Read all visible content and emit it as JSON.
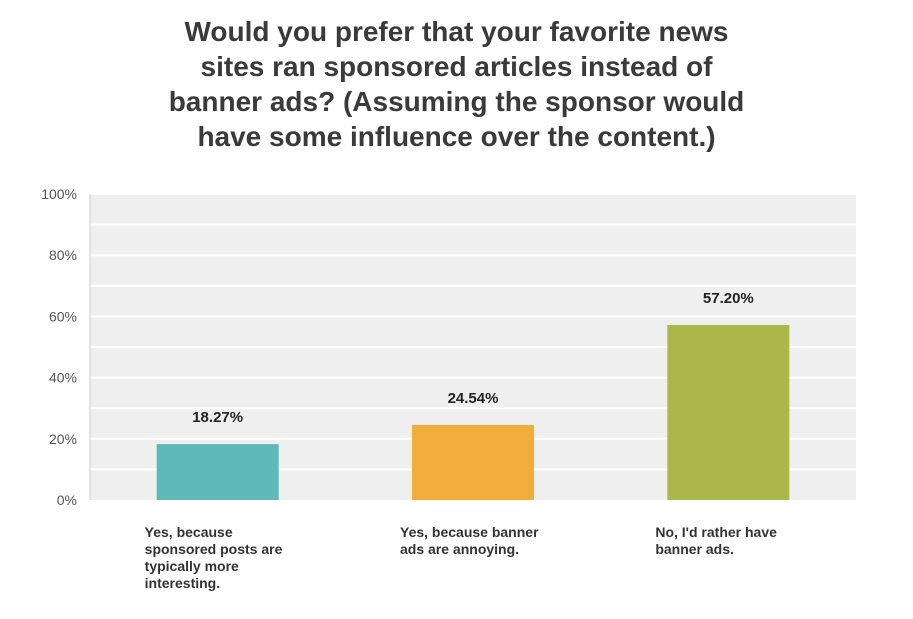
{
  "chart_data": {
    "type": "bar",
    "title_lines": [
      "Would you prefer that your favorite news",
      "sites ran sponsored articles instead of",
      "banner ads? (Assuming the sponsor would",
      "have some influence over the content.)"
    ],
    "categories": [
      "Yes, because sponsored posts are typically more interesting.",
      "Yes, because banner ads are annoying.",
      "No, I'd rather have banner ads."
    ],
    "category_label_lines": [
      [
        "Yes, because",
        "sponsored posts are",
        "typically more",
        "interesting."
      ],
      [
        "Yes, because banner",
        "ads are annoying."
      ],
      [
        "No, I'd rather have",
        "banner ads."
      ]
    ],
    "values": [
      18.27,
      24.54,
      57.2
    ],
    "value_labels": [
      "18.27%",
      "24.54%",
      "57.20%"
    ],
    "bar_colors": [
      "#5fb9b9",
      "#f0ad3a",
      "#aab84a"
    ],
    "ylim": [
      0,
      100
    ],
    "y_ticks": [
      0,
      20,
      40,
      60,
      80,
      100
    ],
    "y_tick_labels": [
      "0%",
      "20%",
      "40%",
      "60%",
      "80%",
      "100%"
    ],
    "xlabel": "",
    "ylabel": "",
    "grid": true,
    "plot_background": "#efefef",
    "grid_color": "#ffffff"
  }
}
